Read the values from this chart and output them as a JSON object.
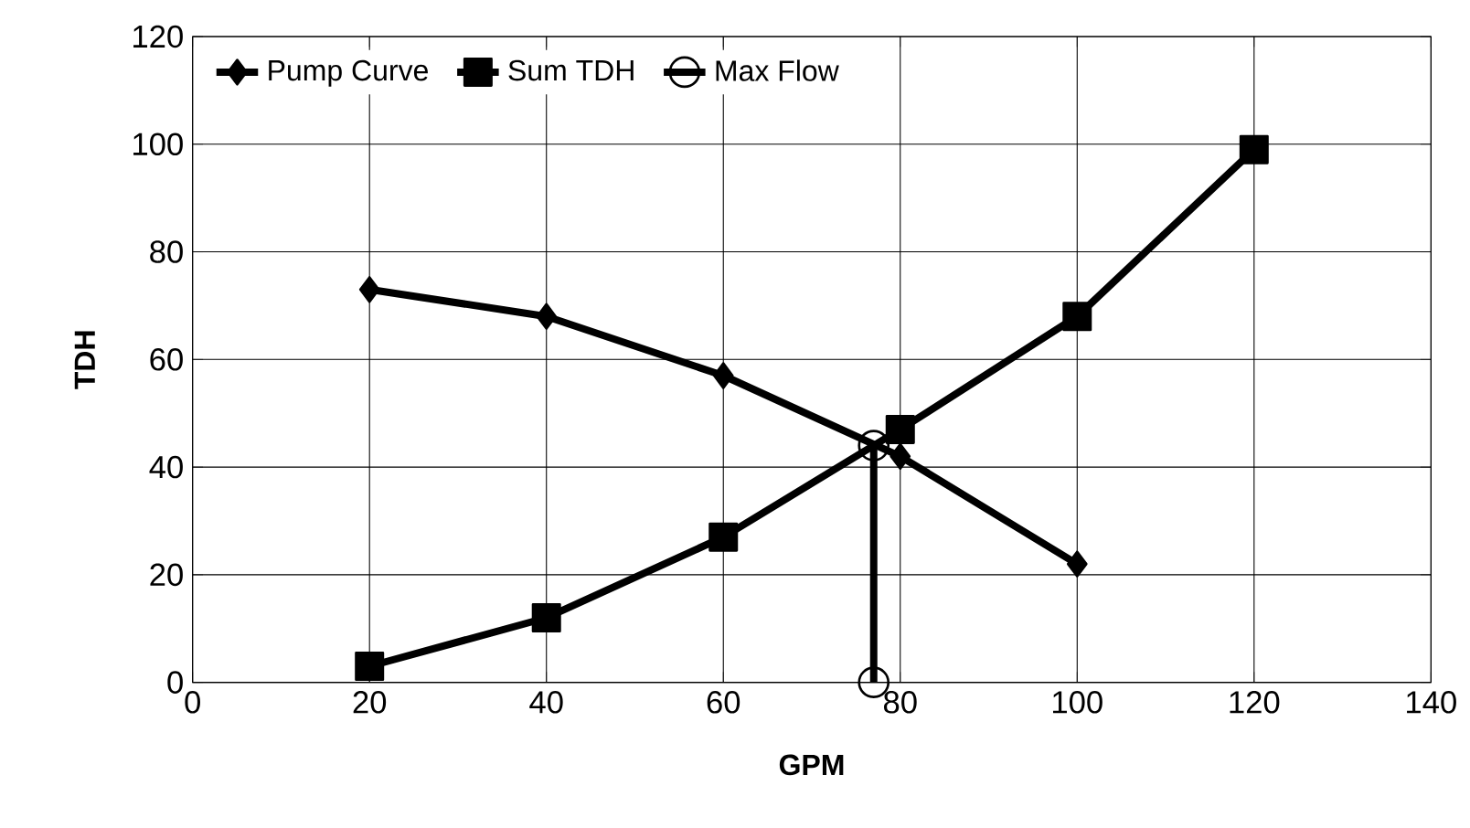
{
  "chart_data": {
    "type": "line",
    "xlabel": "GPM",
    "ylabel": "TDH",
    "xlim": [
      0,
      140
    ],
    "ylim": [
      0,
      120
    ],
    "xticks": [
      0,
      20,
      40,
      60,
      80,
      100,
      120,
      140
    ],
    "yticks": [
      0,
      20,
      40,
      60,
      80,
      100,
      120
    ],
    "grid": true,
    "legend": "top left",
    "series": [
      {
        "name": "Pump Curve",
        "color": "#000000",
        "marker": "diamond",
        "x": [
          20,
          40,
          60,
          80,
          100
        ],
        "values": [
          73,
          68,
          57,
          42,
          22
        ]
      },
      {
        "name": "Sum TDH",
        "color": "#000000",
        "marker": "square",
        "x": [
          20,
          40,
          60,
          80,
          100,
          120
        ],
        "values": [
          3,
          12,
          27,
          47,
          68,
          99
        ]
      },
      {
        "name": "Max Flow",
        "color": "#000000",
        "marker": "circle",
        "x": [
          77,
          77
        ],
        "values": [
          0,
          44
        ]
      }
    ]
  }
}
